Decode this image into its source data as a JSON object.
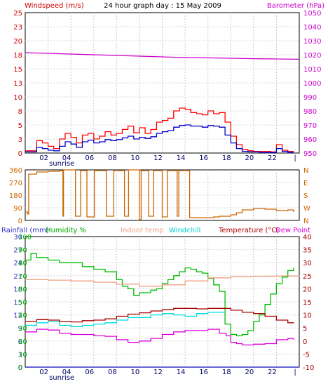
{
  "chart_data": [
    {
      "type": "line",
      "title": "24 hour graph day : 15 May 2009",
      "left_label": "Windspeed (m/s)",
      "right_label": "Barometer (hPa)",
      "x_ticks": [
        "02",
        "04",
        "06",
        "08",
        "10",
        "12",
        "14",
        "16",
        "18",
        "20",
        "22",
        "|"
      ],
      "sunrise_label": "sunrise",
      "y_left_ticks": [
        0,
        3,
        5,
        8,
        10,
        13,
        15,
        18,
        20,
        23,
        25
      ],
      "y_right_ticks": [
        950,
        960,
        970,
        980,
        990,
        1000,
        1010,
        1020,
        1030,
        1040,
        1050
      ],
      "ylim_left": [
        0,
        25
      ],
      "ylim_right": [
        950,
        1050
      ],
      "xlim_hours": [
        0,
        24
      ],
      "grid": true,
      "colors": {
        "gust": "#ff0000",
        "wind": "#0000cc",
        "barometer": "#cc00cc",
        "left_label": "#cc0000",
        "right_label": "#cc00cc"
      },
      "series": [
        {
          "color": "#ff0000",
          "axis": "left",
          "x": [
            0,
            0.5,
            1,
            1.5,
            2,
            2.5,
            3,
            3.5,
            4,
            4.5,
            5,
            5.5,
            6,
            6.5,
            7,
            7.5,
            8,
            8.5,
            9,
            9.5,
            10,
            10.5,
            11,
            11.5,
            12,
            12.5,
            13,
            13.5,
            14,
            14.5,
            15,
            15.5,
            16,
            16.5,
            17,
            17.5,
            18,
            18.5,
            19,
            19.5,
            20,
            20.5,
            21,
            21.5,
            22,
            22.5,
            23,
            23.5
          ],
          "values": [
            0.4,
            0.4,
            2.2,
            1.8,
            1.2,
            0.8,
            2.5,
            3.5,
            2.8,
            1.8,
            3.2,
            3.5,
            2.5,
            3.0,
            3.8,
            3.2,
            3.5,
            4.2,
            4.8,
            3.6,
            4.5,
            3.5,
            4.2,
            5.5,
            5.8,
            6.2,
            7.5,
            8.0,
            7.8,
            7.2,
            7.0,
            6.8,
            7.5,
            7.0,
            7.2,
            5.5,
            3.0,
            1.5,
            0.6,
            0.4,
            0.3,
            0.3,
            0.3,
            0.2,
            1.5,
            0.5,
            0.3,
            0.2
          ]
        },
        {
          "color": "#0000cc",
          "axis": "left",
          "x": [
            0,
            0.5,
            1,
            1.5,
            2,
            2.5,
            3,
            3.5,
            4,
            4.5,
            5,
            5.5,
            6,
            6.5,
            7,
            7.5,
            8,
            8.5,
            9,
            9.5,
            10,
            10.5,
            11,
            11.5,
            12,
            12.5,
            13,
            13.5,
            14,
            14.5,
            15,
            15.5,
            16,
            16.5,
            17,
            17.5,
            18,
            18.5,
            19,
            19.5,
            20,
            20.5,
            21,
            21.5,
            22,
            22.5,
            23,
            23.5
          ],
          "values": [
            0.2,
            0.2,
            1.0,
            0.8,
            0.5,
            0.4,
            1.2,
            2.0,
            1.6,
            1.0,
            2.0,
            2.3,
            1.8,
            2.0,
            2.4,
            2.2,
            2.4,
            2.7,
            3.0,
            2.5,
            2.8,
            2.6,
            2.9,
            3.5,
            3.8,
            4.0,
            4.6,
            4.9,
            5.0,
            4.8,
            4.8,
            4.6,
            4.9,
            4.8,
            4.6,
            3.2,
            1.8,
            0.8,
            0.3,
            0.2,
            0.2,
            0.1,
            0.1,
            0.1,
            0.8,
            0.3,
            0.1,
            0.1
          ]
        },
        {
          "color": "#cc00cc",
          "axis": "right",
          "x": [
            0,
            2,
            4,
            6,
            8,
            10,
            12,
            14,
            16,
            18,
            20,
            22,
            24
          ],
          "values": [
            1021.5,
            1021.0,
            1020.5,
            1020.0,
            1019.5,
            1019.0,
            1018.5,
            1018.0,
            1017.8,
            1017.5,
            1017.2,
            1017.0,
            1016.8
          ]
        }
      ]
    },
    {
      "type": "line",
      "x_ticks": [],
      "y_left_ticks": [
        0,
        90,
        180,
        270,
        360
      ],
      "y_right_ticks": [
        "N",
        "W",
        "S",
        "E",
        "N"
      ],
      "ylim": [
        0,
        360
      ],
      "xlim_hours": [
        0,
        24
      ],
      "grid": true,
      "colors": {
        "direction": "#cc6600",
        "left_tick": "#cc6600",
        "right_tick": "#cc6600"
      },
      "series": [
        {
          "color": "#cc6600",
          "x": [
            0,
            0.2,
            0.3,
            1.0,
            2.0,
            3.0,
            3.3,
            3.35,
            4.3,
            4.4,
            4.8,
            4.85,
            5.3,
            5.4,
            6.0,
            6.05,
            7.0,
            7.1,
            7.7,
            7.75,
            8.6,
            8.7,
            9.0,
            9.05,
            9.9,
            10.0,
            10.1,
            10.15,
            10.7,
            10.8,
            11.2,
            11.25,
            11.9,
            12.0,
            12.4,
            12.45,
            13.2,
            13.3,
            13.4,
            13.45,
            14.3,
            14.4,
            15.5,
            16.5,
            17.0,
            17.5,
            18.0,
            18.5,
            19.0,
            20.0,
            21.0,
            22.0,
            23.0,
            23.5
          ],
          "values": [
            60,
            45,
            330,
            345,
            350,
            355,
            30,
            360,
            360,
            30,
            30,
            355,
            355,
            25,
            25,
            355,
            355,
            30,
            30,
            355,
            355,
            30,
            30,
            360,
            360,
            5,
            5,
            355,
            355,
            30,
            30,
            355,
            355,
            25,
            25,
            355,
            355,
            30,
            30,
            355,
            355,
            20,
            20,
            25,
            30,
            30,
            40,
            55,
            75,
            85,
            80,
            70,
            75,
            60
          ]
        }
      ]
    },
    {
      "type": "line",
      "x_ticks": [
        "02",
        "04",
        "06",
        "08",
        "10",
        "12",
        "14",
        "16",
        "18",
        "20",
        "22",
        "|"
      ],
      "sunrise_label": "sunrise",
      "labels": {
        "rainfall": "Rainfall (mm)",
        "humidity": "Humidity %",
        "indoor": "Indoor temp",
        "windchill": "Windchill",
        "temperature": "Temperature (°C)",
        "dewpoint": "Dew Point"
      },
      "y_rain_ticks": [
        0,
        3,
        6,
        9,
        12,
        15,
        18,
        21,
        24,
        27,
        30
      ],
      "y_humidity_ticks": [
        0,
        10,
        20,
        30,
        40,
        50,
        60,
        70,
        80,
        90,
        100
      ],
      "y_temp_ticks": [
        -10,
        -5,
        0,
        5,
        10,
        15,
        20,
        25,
        30,
        35,
        40
      ],
      "ylim_temp": [
        -10,
        40
      ],
      "ylim_humidity": [
        0,
        100
      ],
      "xlim_hours": [
        0,
        24
      ],
      "grid": true,
      "colors": {
        "rainfall": "#3333cc",
        "humidity": "#00bb00",
        "indoor": "#f0a080",
        "windchill": "#00dddd",
        "temperature": "#aa0000",
        "dewpoint": "#dd00dd"
      },
      "series": [
        {
          "color": "#00bb00",
          "axis": "humidity",
          "x": [
            0,
            0.5,
            1,
            2,
            3,
            4,
            5,
            6,
            7,
            8,
            8.5,
            9,
            9.5,
            10,
            10.5,
            11,
            11.5,
            12,
            12.5,
            13,
            13.5,
            14,
            14.5,
            15,
            15.5,
            16,
            16.5,
            17,
            17.5,
            18,
            18.5,
            19,
            19.5,
            20,
            20.5,
            21,
            21.5,
            22,
            22.5,
            23,
            23.5
          ],
          "values": [
            82,
            87,
            84,
            82,
            80,
            80,
            77,
            75,
            73,
            67,
            62,
            60,
            55,
            57,
            57,
            59,
            60,
            64,
            67,
            70,
            73,
            76,
            75,
            73,
            72,
            68,
            63,
            58,
            33,
            25,
            24,
            25,
            28,
            35,
            40,
            48,
            56,
            64,
            69,
            74,
            76
          ]
        },
        {
          "color": "#f0a080",
          "axis": "temp",
          "x": [
            0,
            2,
            4,
            6,
            8,
            10,
            12,
            14,
            16,
            18,
            20,
            22,
            24
          ],
          "values": [
            23.5,
            23.3,
            23.0,
            22.5,
            21.8,
            21.0,
            21.5,
            23.0,
            24.2,
            24.6,
            24.8,
            24.9,
            25.0
          ]
        },
        {
          "color": "#00dddd",
          "axis": "temp",
          "x": [
            0,
            1,
            2,
            3,
            4,
            5,
            6,
            7,
            8,
            9,
            10,
            11,
            12,
            13,
            14,
            15,
            16,
            17,
            17.5
          ],
          "values": [
            6,
            7,
            7.5,
            6,
            5.5,
            6,
            6.5,
            7,
            8,
            9,
            9,
            10,
            10.5,
            10,
            9.5,
            10.5,
            11,
            11,
            11
          ]
        },
        {
          "color": "#aa0000",
          "axis": "temp",
          "x": [
            0,
            1,
            2,
            3,
            4,
            5,
            6,
            7,
            8,
            9,
            10,
            11,
            12,
            13,
            14,
            15,
            16,
            17,
            18,
            19,
            20,
            21,
            22,
            23,
            23.5
          ],
          "values": [
            7.5,
            8.2,
            8.0,
            7.5,
            7.3,
            7.8,
            8.0,
            8.5,
            9.5,
            10.3,
            10.8,
            11.5,
            12.0,
            12.5,
            12.5,
            12.3,
            12.5,
            12.5,
            11.8,
            11.0,
            10.5,
            9.5,
            8.0,
            7.0,
            6.8
          ]
        },
        {
          "color": "#dd00dd",
          "axis": "temp",
          "x": [
            0,
            1,
            2,
            3,
            4,
            5,
            6,
            7,
            8,
            9,
            10,
            11,
            12,
            13,
            14,
            15,
            16,
            17,
            17.6,
            18,
            18.5,
            19,
            20,
            21,
            22,
            23,
            23.5
          ],
          "values": [
            3.5,
            4.5,
            4.2,
            3.0,
            2.5,
            2.5,
            2.0,
            1.8,
            0.5,
            -0.5,
            0.0,
            1.0,
            2.5,
            3.5,
            4.0,
            4.0,
            4.5,
            3.0,
            2.0,
            -0.5,
            -1.0,
            -1.5,
            -1.2,
            -1.0,
            0.5,
            1.0,
            0.5
          ]
        },
        {
          "color": "#3333cc",
          "axis": "rain",
          "x": [
            0,
            24
          ],
          "values": [
            0,
            0
          ]
        }
      ]
    }
  ]
}
